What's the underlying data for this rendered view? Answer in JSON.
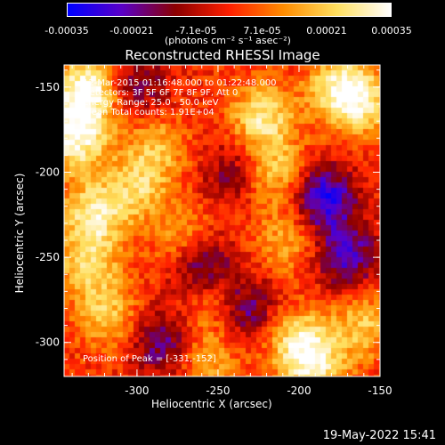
{
  "chart_data": {
    "type": "heatmap",
    "title": "Reconstructed RHESSI Image",
    "xlabel": "Heliocentric X (arcsec)",
    "ylabel": "Heliocentric Y (arcsec)",
    "xlim": [
      -345,
      -150
    ],
    "ylim": [
      -320,
      -137
    ],
    "x_ticks": [
      "-300",
      "-250",
      "-200",
      "-150"
    ],
    "x_tick_values": [
      -300,
      -250,
      -200,
      -150
    ],
    "y_ticks": [
      "-150",
      "-200",
      "-250",
      "-300"
    ],
    "y_tick_values": [
      -150,
      -200,
      -250,
      -300
    ],
    "colorbar": {
      "ticks": [
        "-0.00035",
        "-0.00021",
        "-7.1e-05",
        "7.1e-05",
        "0.00021",
        "0.00035"
      ],
      "tick_values": [
        -0.00035,
        -0.00021,
        -7.1e-05,
        7.1e-05,
        0.00021,
        0.00035
      ],
      "range": [
        -0.00035,
        0.00035
      ],
      "unit": "(photons cm⁻² s⁻¹ asec⁻²)",
      "colormap": [
        "#0000ff",
        "#5a00c8",
        "#8c0000",
        "#ff2000",
        "#ff8c00",
        "#ffe060",
        "#ffffff"
      ]
    },
    "annotations": {
      "time_range": "12-Mar-2015 01:16:48.000 to 01:22:48.000",
      "detectors": "Detectors: 3F 5F 6F 7F 8F 9F, Att 0",
      "energy": "Energy Range: 25.0 - 50.0 keV",
      "clean": "Clean    Total counts: 1.91E+04",
      "peak": "Position of Peak = [-331,-152]"
    },
    "peak_position": [
      -331,
      -152
    ],
    "bright_regions": [
      {
        "x": -331,
        "y": -152,
        "intensity": 1.0
      },
      {
        "x": -338,
        "y": -180,
        "intensity": 0.9
      },
      {
        "x": -327,
        "y": -225,
        "intensity": 0.75
      },
      {
        "x": -330,
        "y": -255,
        "intensity": 0.6
      },
      {
        "x": -318,
        "y": -285,
        "intensity": 0.55
      },
      {
        "x": -300,
        "y": -210,
        "intensity": 0.55
      },
      {
        "x": -288,
        "y": -185,
        "intensity": 0.5
      },
      {
        "x": -270,
        "y": -240,
        "intensity": 0.5
      },
      {
        "x": -252,
        "y": -275,
        "intensity": 0.55
      },
      {
        "x": -223,
        "y": -168,
        "intensity": 0.75
      },
      {
        "x": -215,
        "y": -200,
        "intensity": 0.6
      },
      {
        "x": -208,
        "y": -240,
        "intensity": 0.45
      },
      {
        "x": -175,
        "y": -150,
        "intensity": 0.7
      },
      {
        "x": -162,
        "y": -160,
        "intensity": 0.65
      },
      {
        "x": -200,
        "y": -300,
        "intensity": 0.7
      },
      {
        "x": -190,
        "y": -315,
        "intensity": 0.6
      },
      {
        "x": -160,
        "y": -290,
        "intensity": 0.55
      },
      {
        "x": -255,
        "y": -310,
        "intensity": 0.45
      }
    ],
    "dim_regions": [
      {
        "x": -185,
        "y": -215,
        "intensity": -0.9
      },
      {
        "x": -260,
        "y": -255,
        "intensity": -0.8
      },
      {
        "x": -235,
        "y": -280,
        "intensity": -0.7
      },
      {
        "x": -285,
        "y": -300,
        "intensity": -0.6
      },
      {
        "x": -170,
        "y": -250,
        "intensity": -0.7
      },
      {
        "x": -300,
        "y": -150,
        "intensity": -0.5
      },
      {
        "x": -240,
        "y": -200,
        "intensity": -0.45
      }
    ]
  },
  "footer": {
    "datestamp": "19-May-2022 15:41"
  }
}
